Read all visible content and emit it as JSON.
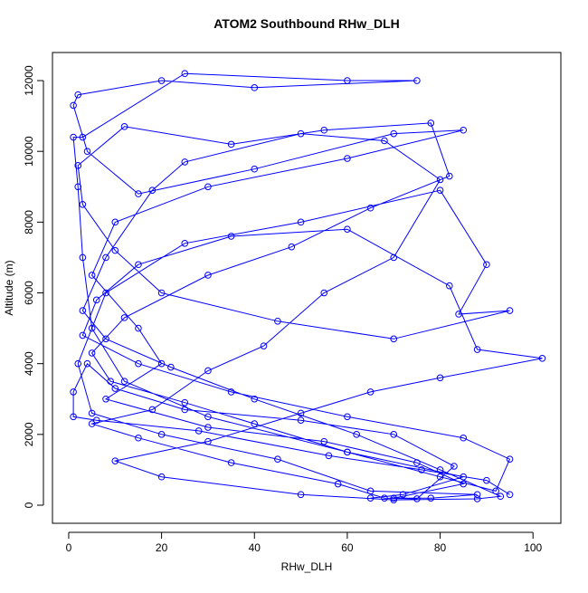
{
  "chart_data": {
    "type": "line",
    "title": "ATOM2 Southbound RHw_DLH",
    "xlabel": "RHw_DLH",
    "ylabel": "Altitude (m)",
    "color": "#0000ff",
    "markers": true,
    "xlim": [
      -3.5,
      106
    ],
    "ylim": [
      -512,
      12794
    ],
    "xticks": [
      0,
      20,
      40,
      60,
      80,
      100
    ],
    "yticks": [
      0,
      2000,
      4000,
      6000,
      8000,
      10000,
      12000
    ],
    "x": [
      65,
      72,
      85,
      60,
      30,
      12,
      5,
      3,
      2,
      1,
      3,
      25,
      60,
      75,
      40,
      20,
      2,
      1,
      4,
      15,
      40,
      70,
      85,
      60,
      30,
      10,
      5,
      15,
      20,
      8,
      30,
      55,
      75,
      85,
      70,
      78,
      88,
      65,
      45,
      20,
      5,
      2,
      8,
      25,
      50,
      80,
      90,
      84,
      95,
      70,
      45,
      20,
      10,
      3,
      2,
      12,
      35,
      55,
      78,
      82,
      65,
      48,
      30,
      12,
      5,
      9,
      25,
      40,
      60,
      80,
      92,
      95,
      85,
      60,
      35,
      15,
      3,
      6,
      15,
      35,
      60,
      82,
      88,
      102,
      80,
      65,
      50,
      30,
      10,
      20,
      50,
      70,
      88,
      93,
      80,
      62,
      40,
      22,
      8,
      3,
      8,
      18,
      25,
      50,
      68,
      80,
      70,
      55,
      42,
      30,
      18,
      5,
      15,
      35,
      58,
      68,
      75,
      83,
      70,
      50,
      25,
      10,
      4,
      1,
      1,
      6,
      28,
      56,
      76,
      90,
      95
    ],
    "series": [
      {
        "name": "Altitude (m)",
        "values": [
          200,
          300,
          800,
          1500,
          2500,
          3500,
          5000,
          7000,
          9000,
          10400,
          10400,
          12200,
          12000,
          12000,
          11800,
          12000,
          11600,
          11300,
          10000,
          8800,
          9500,
          10500,
          10600,
          9800,
          9000,
          8000,
          6500,
          5000,
          4000,
          3000,
          2200,
          1800,
          1200,
          600,
          200,
          200,
          300,
          400,
          1300,
          2000,
          2600,
          4000,
          6000,
          7400,
          8000,
          8900,
          6800,
          5400,
          5500,
          4700,
          5200,
          6000,
          7200,
          8500,
          9600,
          10700,
          10200,
          10600,
          10800,
          9300,
          8400,
          7300,
          6500,
          5300,
          4300,
          3500,
          2900,
          2300,
          1500,
          800,
          400,
          1300,
          1900,
          2500,
          3200,
          4000,
          4800,
          5800,
          6800,
          7600,
          7800,
          6200,
          4400,
          4150,
          3600,
          3200,
          2600,
          1800,
          1250,
          800,
          300,
          150,
          180,
          250,
          1000,
          2000,
          3000,
          3900,
          4700,
          5500,
          7000,
          8900,
          9700,
          10500,
          10300,
          9200,
          7000,
          6000,
          4500,
          3800,
          2700,
          2300,
          1900,
          1200,
          600,
          200,
          180,
          1100,
          2000,
          2400,
          2700,
          3300,
          4000,
          3200,
          2500,
          2400,
          2100,
          1400,
          1000,
          700,
          300
        ]
      }
    ]
  }
}
